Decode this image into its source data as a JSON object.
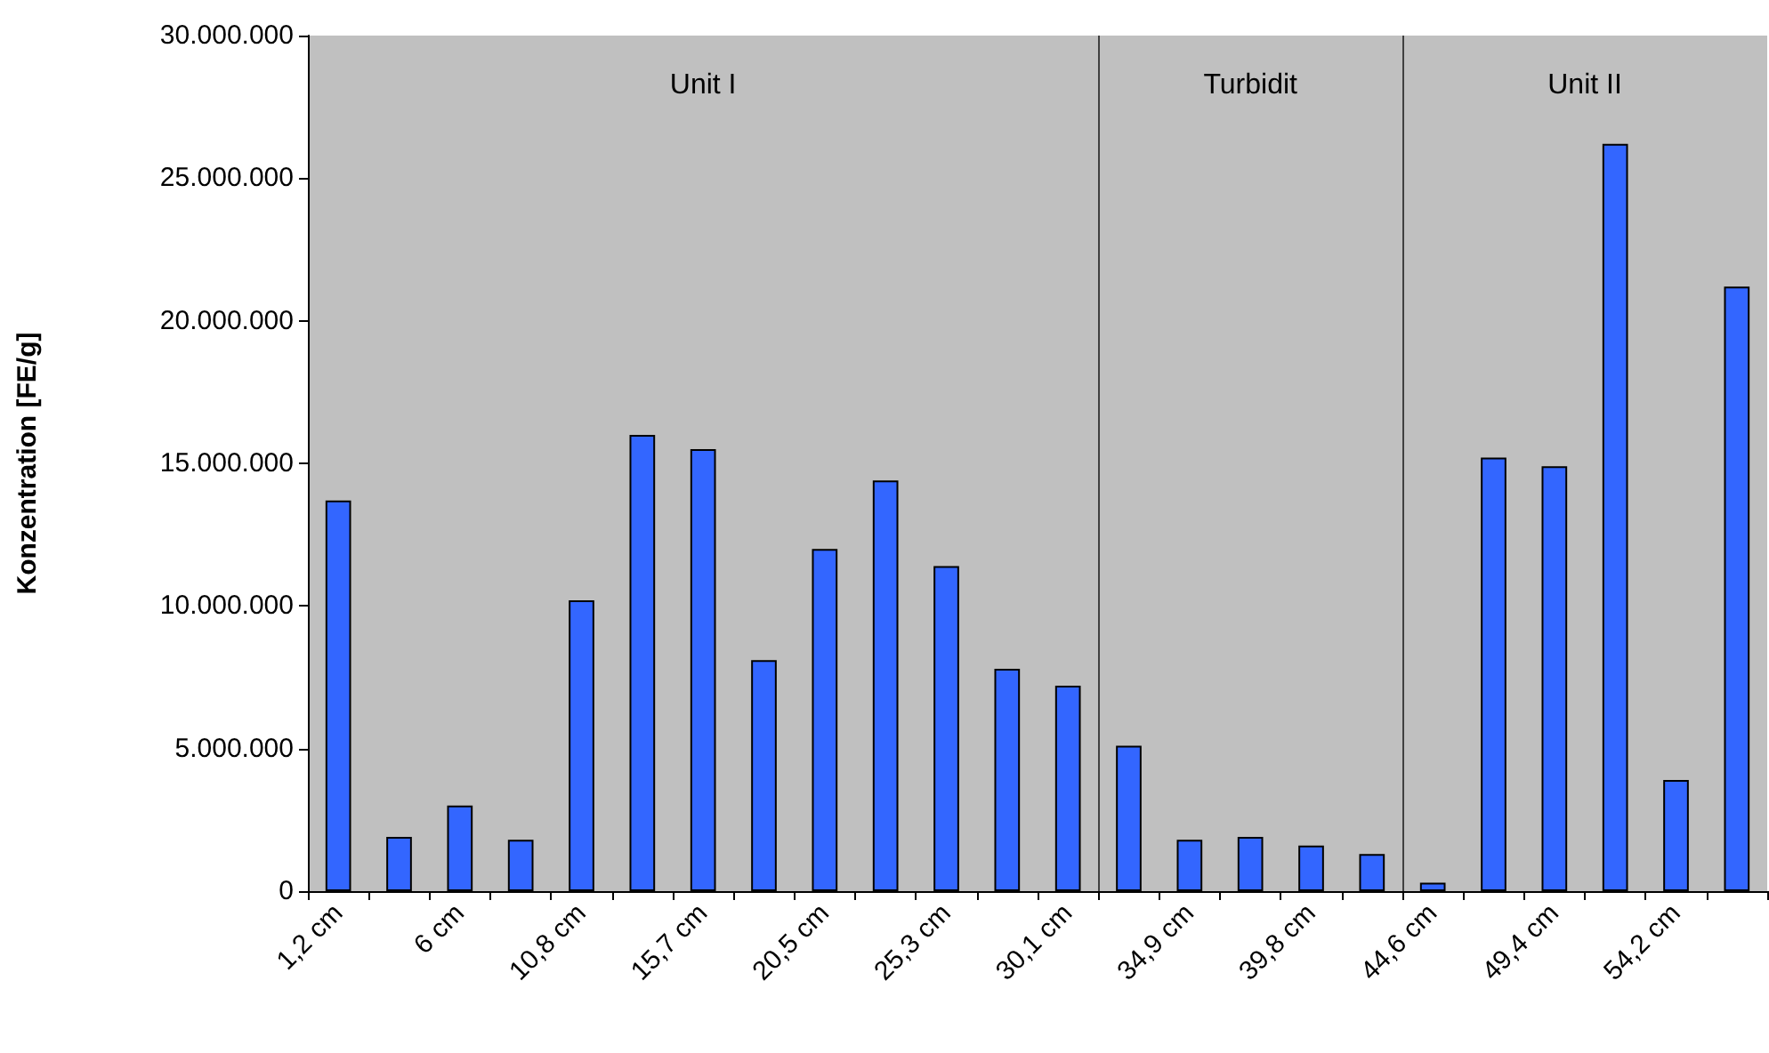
{
  "chart_data": {
    "type": "bar",
    "ylabel": "Konzentration [FE/g]",
    "categories": [
      "1,2 cm",
      null,
      "6 cm",
      null,
      "10,8 cm",
      null,
      "15,7 cm",
      null,
      "20,5 cm",
      null,
      "25,3 cm",
      null,
      "30,1 cm",
      null,
      "34,9 cm",
      null,
      "39,8 cm",
      null,
      "44,6 cm",
      null,
      "49,4 cm",
      null,
      "54,2 cm",
      null
    ],
    "values": [
      13700000.0,
      1900000.0,
      3000000.0,
      1800000.0,
      10200000.0,
      16000000.0,
      15500000.0,
      8100000.0,
      12000000.0,
      14400000.0,
      11400000.0,
      7800000.0,
      7200000.0,
      5100000.0,
      1800000.0,
      1900000.0,
      1600000.0,
      1300000.0,
      300000.0,
      15200000.0,
      14900000.0,
      26200000.0,
      3900000.0,
      21200000.0
    ],
    "color": "#3366ff",
    "ylim": [
      0,
      30000000
    ],
    "yticks": [
      {
        "value": 0,
        "label": "0"
      },
      {
        "value": 5000000,
        "label": "5.000.000"
      },
      {
        "value": 10000000,
        "label": "10.000.000"
      },
      {
        "value": 15000000,
        "label": "15.000.000"
      },
      {
        "value": 20000000,
        "label": "20.000.000"
      },
      {
        "value": 25000000,
        "label": "25.000.000"
      },
      {
        "value": 30000000,
        "label": "30.000.000"
      }
    ],
    "annotations": [
      "Unit I",
      "Turbidit",
      "Unit II"
    ]
  }
}
